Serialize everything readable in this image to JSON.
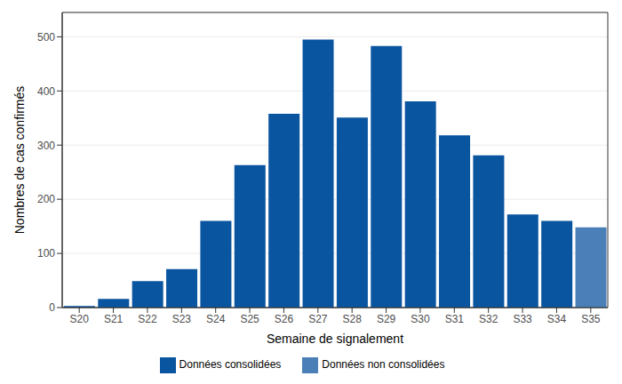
{
  "chart_data": {
    "type": "bar",
    "x_label": "Semaine de signalement",
    "y_label": "Nombres de cas confirmés",
    "categories": [
      "S20",
      "S21",
      "S22",
      "S23",
      "S24",
      "S25",
      "S26",
      "S27",
      "S28",
      "S29",
      "S30",
      "S31",
      "S32",
      "S33",
      "S34",
      "S35"
    ],
    "series": [
      {
        "name": "Données consolidées",
        "color": "#0a55a0",
        "values": [
          3,
          16,
          49,
          71,
          160,
          263,
          358,
          495,
          351,
          483,
          381,
          318,
          281,
          172,
          160,
          null
        ]
      },
      {
        "name": "Données non consolidées",
        "color": "#4a80b7",
        "values": [
          null,
          null,
          null,
          null,
          null,
          null,
          null,
          null,
          null,
          null,
          null,
          null,
          null,
          null,
          null,
          148
        ]
      }
    ],
    "stacked": true,
    "ylim": [
      0,
      545
    ],
    "yticks": [
      0,
      100,
      200,
      300,
      400,
      500
    ],
    "grid": true,
    "legend": "bottom"
  }
}
